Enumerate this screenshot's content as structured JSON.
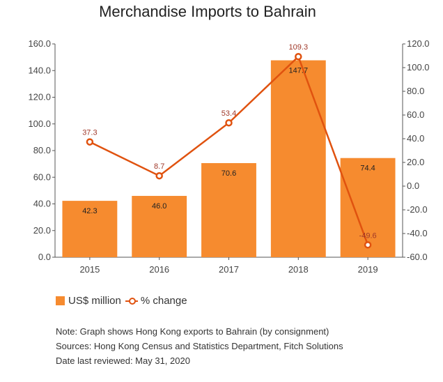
{
  "chart_data": {
    "type": "bar",
    "title": "Merchandise Imports to Bahrain",
    "categories": [
      "2015",
      "2016",
      "2017",
      "2018",
      "2019"
    ],
    "series": [
      {
        "name": "US$ million",
        "type": "bar",
        "axis": "left",
        "values": [
          42.3,
          46.0,
          70.6,
          147.7,
          74.4
        ],
        "labels": [
          "42.3",
          "46.0",
          "70.6",
          "147.7",
          "74.4"
        ]
      },
      {
        "name": "% change",
        "type": "line",
        "axis": "right",
        "values": [
          37.3,
          8.7,
          53.4,
          109.3,
          -49.6
        ],
        "labels": [
          "37.3",
          "8.7",
          "53.4",
          "109.3",
          "-49.6"
        ]
      }
    ],
    "y_left": {
      "min": 0,
      "max": 160,
      "step": 20,
      "ticks": [
        "0.0",
        "20.0",
        "40.0",
        "60.0",
        "80.0",
        "100.0",
        "120.0",
        "140.0",
        "160.0"
      ]
    },
    "y_right": {
      "min": -60,
      "max": 120,
      "step": 20,
      "ticks": [
        "-60.0",
        "-40.0",
        "-20.0",
        "0.0",
        "20.0",
        "40.0",
        "60.0",
        "80.0",
        "100.0",
        "120.0"
      ]
    },
    "grid": false,
    "legend": "bottom-left"
  },
  "colors": {
    "bar": "#f68b2f",
    "line": "#e0520f",
    "point_label": "#a0392a"
  },
  "notes": [
    "Note: Graph shows Hong Kong exports to Bahrain (by consignment)",
    "Sources: Hong Kong Census and Statistics Department, Fitch Solutions",
    "Date last reviewed: May 31, 2020"
  ]
}
